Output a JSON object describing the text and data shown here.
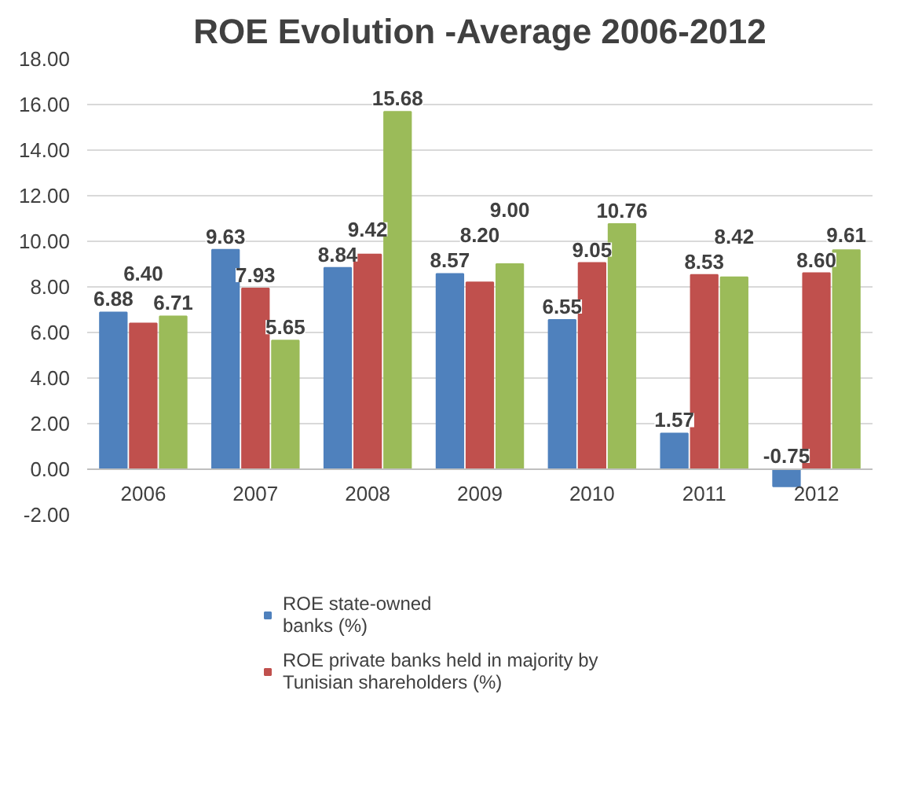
{
  "chart_data": {
    "type": "bar",
    "title": "ROE Evolution -Average 2006-2012",
    "categories": [
      "2006",
      "2007",
      "2008",
      "2009",
      "2010",
      "2011",
      "2012"
    ],
    "series": [
      {
        "name": "ROE state-owned banks (%)",
        "color": "#4f81bd",
        "values": [
          6.88,
          9.63,
          8.84,
          8.57,
          6.55,
          1.57,
          -0.75
        ],
        "value_labels": [
          "6.88",
          "9.63",
          "8.84",
          "8.57",
          "6.55",
          "1.57",
          "-0.75"
        ]
      },
      {
        "name": "ROE private banks held in majority by Tunisian shareholders (%)",
        "color": "#c0504d",
        "values": [
          6.4,
          7.93,
          9.42,
          8.2,
          9.05,
          8.53,
          8.6
        ],
        "value_labels": [
          "6.40",
          "7.93",
          "9.42",
          "8.20",
          "9.05",
          "8.53",
          "8.60"
        ]
      },
      {
        "color": "#9bbb59",
        "values": [
          6.71,
          5.65,
          15.68,
          9.0,
          10.76,
          8.42,
          9.61
        ],
        "value_labels": [
          "6.71",
          "5.65",
          "15.68",
          "9.00",
          "10.76",
          "8.42",
          "9.61"
        ]
      }
    ],
    "ylim": [
      -2,
      18
    ],
    "yticks": [
      {
        "value": -2,
        "label": "-2.00"
      },
      {
        "value": 0,
        "label": "0.00"
      },
      {
        "value": 2,
        "label": "2.00"
      },
      {
        "value": 4,
        "label": "4.00"
      },
      {
        "value": 6,
        "label": "6.00"
      },
      {
        "value": 8,
        "label": "8.00"
      },
      {
        "value": 10,
        "label": "10.00"
      },
      {
        "value": 12,
        "label": "12.00"
      },
      {
        "value": 14,
        "label": "14.00"
      },
      {
        "value": 16,
        "label": "16.00"
      },
      {
        "value": 18,
        "label": "18.00"
      }
    ],
    "grid": "y",
    "legend": "bottom"
  }
}
